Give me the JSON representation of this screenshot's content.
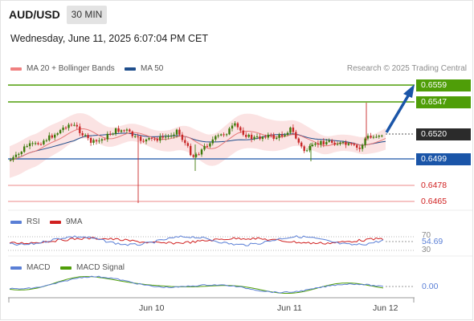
{
  "header": {
    "symbol": "AUD/USD",
    "timeframe": "30 MIN",
    "datetime": "Wednesday, June 11, 2025 6:07:04 PM CET"
  },
  "legend": {
    "ma20": "MA 20 + Bollinger Bands",
    "ma50": "MA 50",
    "credit": "Research © 2025 Trading Central"
  },
  "price_levels": {
    "target_2": "0.6559",
    "target_1": "0.6547",
    "last": "0.6520",
    "pivot": "0.6499",
    "support_1": "0.6478",
    "support_2": "0.6465"
  },
  "rsi": {
    "label": "RSI",
    "ma_label": "9MA",
    "level_70": "70",
    "level_30": "30",
    "value": "54.69"
  },
  "macd": {
    "label": "MACD",
    "signal_label": "MACD Signal",
    "value": "0.00"
  },
  "x_axis": [
    "Jun 10",
    "Jun 11",
    "Jun 12"
  ],
  "colors": {
    "ma20": "#f08080",
    "ma50": "#1f4e8c",
    "up_candle": "#3d7a0a",
    "down_candle": "#c82828",
    "green_level": "#4f9e08",
    "blue_level": "#1a55a8",
    "red_level": "#f0a0a0",
    "rsi": "#5a7fd6",
    "rsi_ma": "#d02020",
    "macd": "#5a7fd6",
    "macd_signal": "#4f9e08"
  }
}
